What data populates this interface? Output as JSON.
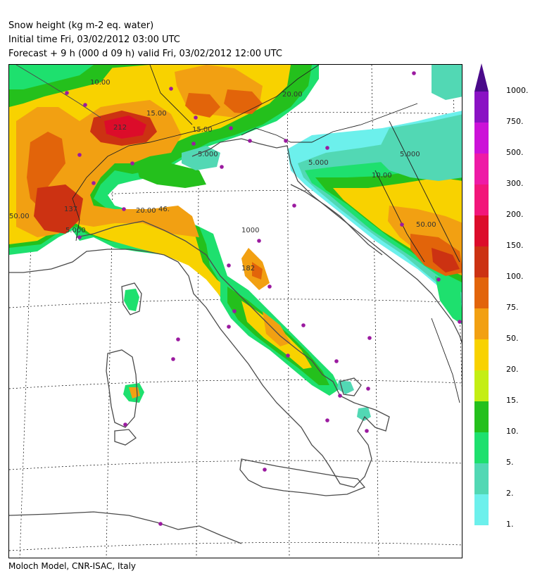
{
  "header": {
    "title": "Snow height (kg m-2 eq. water)",
    "initial_time": "Initial time  Fri, 03/02/2012  03:00 UTC",
    "forecast": "Forecast  +   9 h  (000 d 09 h)  valid Fri, 03/02/2012 12:00 UTC"
  },
  "footer": {
    "credit": "Moloch Model, CNR-ISAC, Italy"
  },
  "legend": {
    "levels": [
      {
        "label": "1000.",
        "color": "#4a0a8a"
      },
      {
        "label": "750.",
        "color": "#8a12c4"
      },
      {
        "label": "500.",
        "color": "#cc12d8"
      },
      {
        "label": "300.",
        "color": "#ee1aa6"
      },
      {
        "label": "200.",
        "color": "#f2167a"
      },
      {
        "label": "150.",
        "color": "#dc0c2a"
      },
      {
        "label": "100.",
        "color": "#cc3212"
      },
      {
        "label": "75.",
        "color": "#e2640a"
      },
      {
        "label": "50.",
        "color": "#f2a012"
      },
      {
        "label": "20.",
        "color": "#f8d200"
      },
      {
        "label": "15.",
        "color": "#c4ee14"
      },
      {
        "label": "10.",
        "color": "#24c01c"
      },
      {
        "label": "5.",
        "color": "#1ee06e"
      },
      {
        "label": "2.",
        "color": "#52d8b4"
      },
      {
        "label": "1.",
        "color": "#6cf0ec"
      }
    ]
  },
  "map": {
    "contour_labels": [
      "10.00",
      "212",
      "137",
      "46.",
      "20.00",
      "15.00",
      "5.000",
      "5.000",
      "50.00",
      "15.00",
      "20.00",
      "5.000",
      "1000",
      "182",
      "50.00",
      "10.00",
      "5.000"
    ],
    "city_markers": 38
  }
}
